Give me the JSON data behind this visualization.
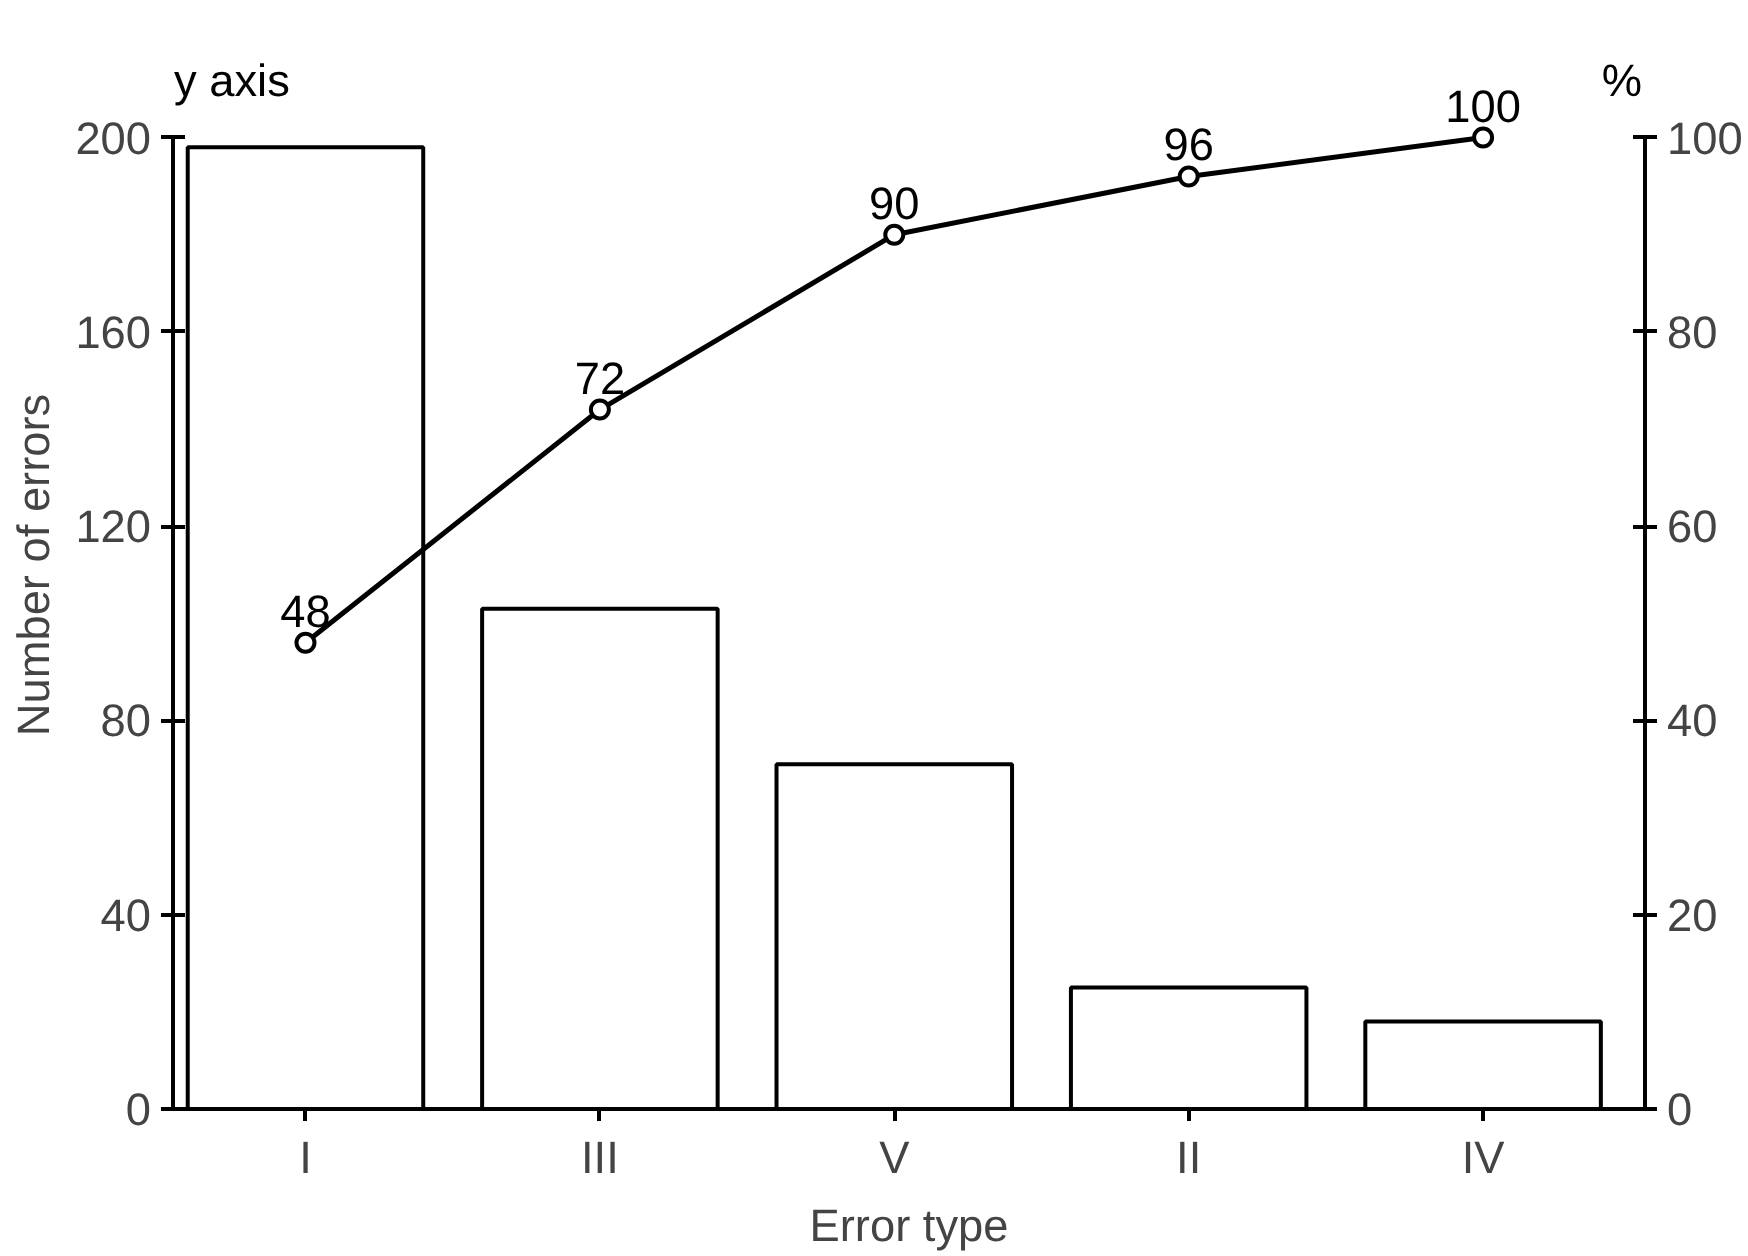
{
  "chart_data": {
    "type": "bar",
    "xlabel": "Error type",
    "ylabel": "Number of errors",
    "y2label": "%",
    "annotations": [
      "y axis"
    ],
    "categories": [
      "I",
      "III",
      "V",
      "II",
      "IV"
    ],
    "series": [
      {
        "color": "#ffffff",
        "values": [
          198,
          103,
          71,
          25,
          18
        ]
      },
      {
        "type": "line",
        "axis": "y2",
        "color": "#000000",
        "marker": "circle",
        "values": [
          48,
          72,
          90,
          96,
          100
        ],
        "value_labels": [
          "48",
          "72",
          "90",
          "96",
          "100"
        ]
      }
    ],
    "ylim": [
      0,
      200
    ],
    "yticks": [
      0,
      40,
      80,
      120,
      160,
      200
    ],
    "y2lim": [
      0,
      100
    ],
    "y2ticks": [
      0,
      20,
      40,
      60,
      80,
      100
    ],
    "grid": false
  }
}
